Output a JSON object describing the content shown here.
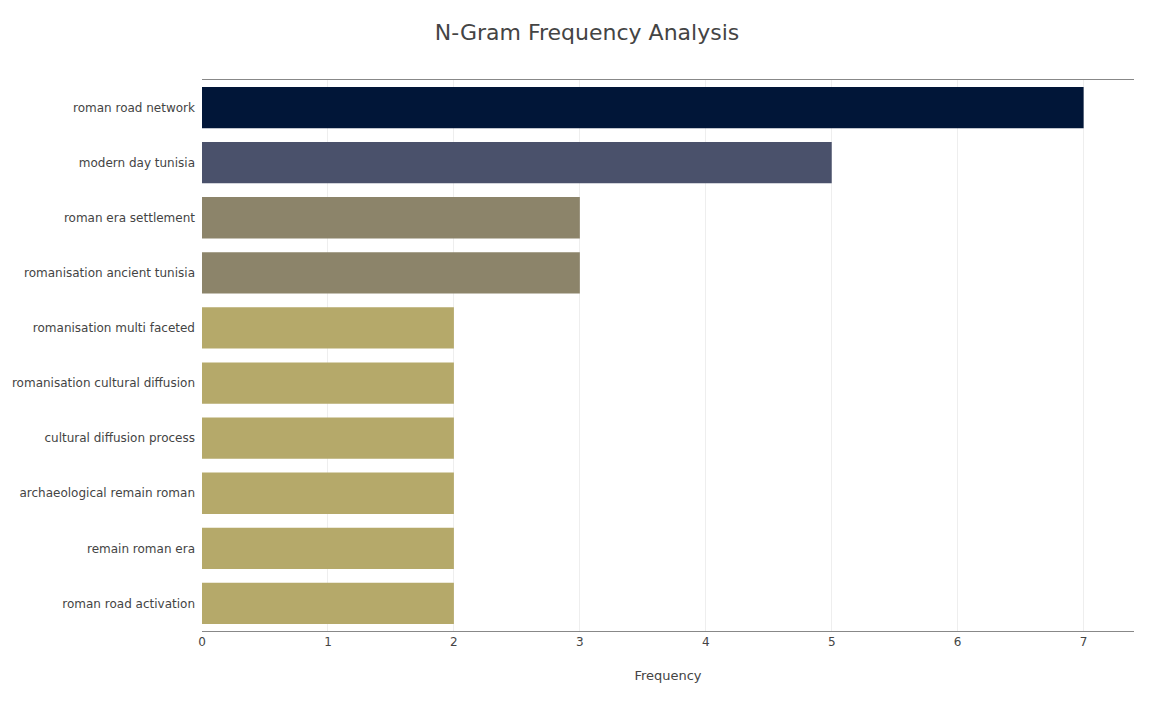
{
  "chart_data": {
    "type": "bar",
    "orientation": "horizontal",
    "title": "N-Gram Frequency Analysis",
    "categories": [
      "roman road activation",
      "remain roman era",
      "archaeological remain roman",
      "cultural diffusion process",
      "romanisation cultural diffusion",
      "romanisation multi faceted",
      "romanisation ancient tunisia",
      "roman era settlement",
      "modern day tunisia",
      "roman road network"
    ],
    "values": [
      2,
      2,
      2,
      2,
      2,
      2,
      3,
      3,
      5,
      7
    ],
    "colors": [
      "#b5a96a",
      "#b5a96a",
      "#b5a96a",
      "#b5a96a",
      "#b5a96a",
      "#b5a96a",
      "#8c846a",
      "#8c846a",
      "#4a516b",
      "#011638"
    ],
    "xlabel": "Frequency",
    "xlim": [
      0,
      7.4
    ],
    "xticks": [
      0,
      1,
      2,
      3,
      4,
      5,
      6,
      7
    ],
    "grid": true
  }
}
